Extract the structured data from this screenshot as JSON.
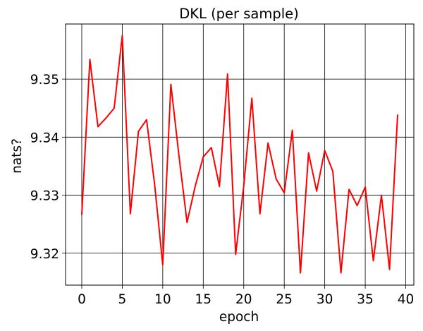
{
  "chart_data": {
    "type": "line",
    "title": "DKL (per sample)",
    "xlabel": "epoch",
    "ylabel": "nats?",
    "xlim": [
      -2,
      41
    ],
    "ylim": [
      9.3145,
      9.3595
    ],
    "xticks": [
      0,
      5,
      10,
      15,
      20,
      25,
      30,
      35,
      40
    ],
    "yticks": [
      9.32,
      9.33,
      9.34,
      9.35
    ],
    "xtick_labels": [
      "0",
      "5",
      "10",
      "15",
      "20",
      "25",
      "30",
      "35",
      "40"
    ],
    "ytick_labels": [
      "9.32",
      "9.33",
      "9.34",
      "9.35"
    ],
    "grid": true,
    "series": [
      {
        "color": "#ff0000",
        "x": [
          0,
          1,
          2,
          3,
          4,
          5,
          6,
          7,
          8,
          9,
          10,
          11,
          12,
          13,
          14,
          15,
          16,
          17,
          18,
          19,
          20,
          21,
          22,
          23,
          24,
          25,
          26,
          27,
          28,
          29,
          30,
          31,
          32,
          33,
          34,
          35,
          36,
          37,
          38,
          39
        ],
        "y": [
          9.3266,
          9.3534,
          9.3418,
          9.3433,
          9.345,
          9.3575,
          9.3268,
          9.341,
          9.343,
          9.3318,
          9.318,
          9.3491,
          9.3368,
          9.3253,
          9.3315,
          9.3366,
          9.3382,
          9.3315,
          9.3509,
          9.3198,
          9.3316,
          9.3467,
          9.3268,
          9.339,
          9.3328,
          9.3304,
          9.3412,
          9.3166,
          9.3373,
          9.3307,
          9.3377,
          9.3341,
          9.3166,
          9.331,
          9.3282,
          9.3314,
          9.3187,
          9.33,
          9.3172,
          9.3439
        ]
      }
    ]
  }
}
